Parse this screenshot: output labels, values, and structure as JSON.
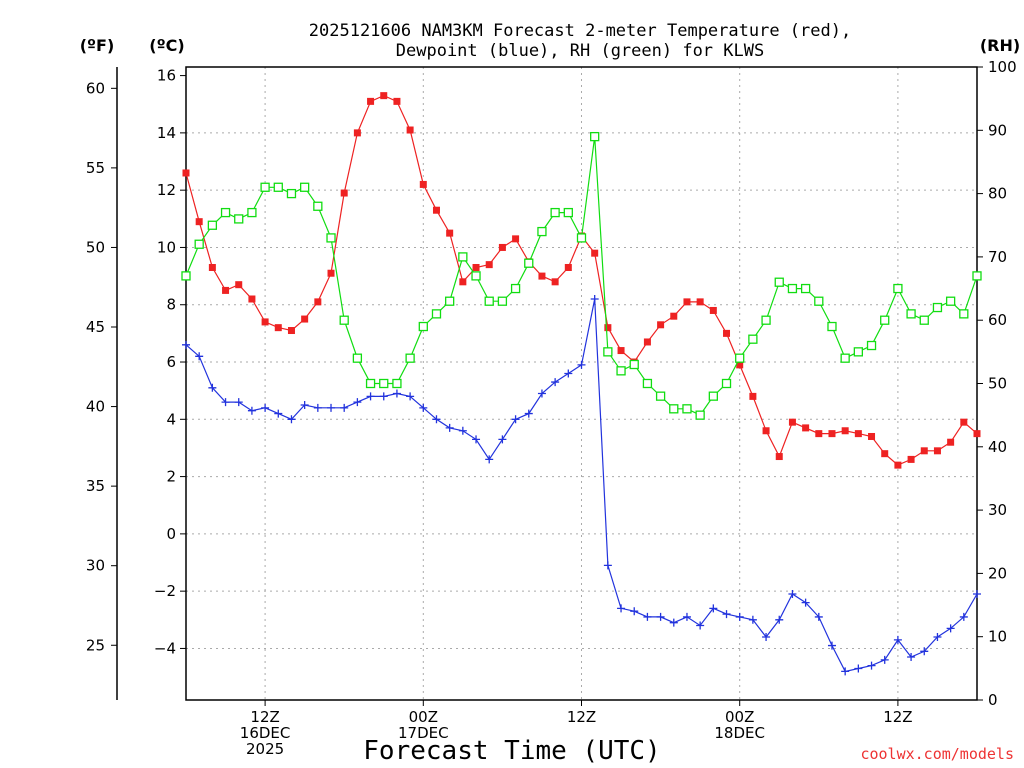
{
  "chart_data": {
    "type": "line",
    "title_line1": "2025121606 NAM3KM Forecast 2-meter Temperature (red),",
    "title_line2": "Dewpoint (blue), RH (green) for KLWS",
    "xlabel": "Forecast Time (UTC)",
    "credit": "coolwx.com/models",
    "units": {
      "left_f": "(ºF)",
      "left_c": "(ºC)",
      "right_rh": "(RH)"
    },
    "x_hours": [
      0,
      1,
      2,
      3,
      4,
      5,
      6,
      7,
      8,
      9,
      10,
      11,
      12,
      13,
      14,
      15,
      16,
      17,
      18,
      19,
      20,
      21,
      22,
      23,
      24,
      25,
      26,
      27,
      28,
      29,
      30,
      31,
      32,
      33,
      34,
      35,
      36,
      37,
      38,
      39,
      40,
      41,
      42,
      43,
      44,
      45,
      46,
      47,
      48,
      49,
      50,
      51,
      52,
      53,
      54,
      55,
      56,
      57,
      58,
      59,
      60
    ],
    "xlim": [
      0,
      60
    ],
    "x_ticks": [
      {
        "hour": 6,
        "lines": [
          "12Z",
          "16DEC",
          "2025"
        ]
      },
      {
        "hour": 18,
        "lines": [
          "00Z",
          "17DEC"
        ]
      },
      {
        "hour": 30,
        "lines": [
          "12Z"
        ]
      },
      {
        "hour": 42,
        "lines": [
          "00Z",
          "18DEC"
        ]
      },
      {
        "hour": 54,
        "lines": [
          "12Z"
        ]
      }
    ],
    "celsius_axis": {
      "ylim": [
        -5.8,
        16.3
      ],
      "ticks": [
        16,
        14,
        12,
        10,
        8,
        6,
        4,
        2,
        0,
        -2,
        -4
      ],
      "tick_labels": [
        "16",
        "14",
        "12",
        "10",
        "8",
        "6",
        "4",
        "2",
        "0",
        "−2",
        "−4"
      ]
    },
    "fahrenheit_axis": {
      "ticks": [
        60,
        55,
        50,
        45,
        40,
        35,
        30,
        25
      ],
      "tick_labels": [
        "60",
        "55",
        "50",
        "45",
        "40",
        "35",
        "30",
        "25"
      ]
    },
    "rh_axis": {
      "ylim": [
        0,
        100
      ],
      "ticks": [
        100,
        90,
        80,
        70,
        60,
        50,
        40,
        30,
        20,
        10,
        0
      ],
      "tick_labels": [
        "100",
        "90",
        "80",
        "70",
        "60",
        "50",
        "40",
        "30",
        "20",
        "10",
        "0"
      ]
    },
    "series": [
      {
        "name": "Temperature",
        "units": "C",
        "color": "#ee2222",
        "marker": "filled-square",
        "values": [
          12.6,
          10.9,
          9.3,
          8.5,
          8.7,
          8.2,
          7.4,
          7.2,
          7.1,
          7.5,
          8.1,
          9.1,
          11.9,
          14.0,
          15.1,
          15.3,
          15.1,
          14.1,
          12.2,
          11.3,
          10.5,
          8.8,
          9.3,
          9.4,
          10.0,
          10.3,
          9.5,
          9.0,
          8.8,
          9.3,
          10.4,
          9.8,
          7.2,
          6.4,
          6.0,
          6.7,
          7.3,
          7.6,
          8.1,
          8.1,
          7.8,
          7.0,
          5.9,
          4.8,
          3.6,
          2.7,
          3.9,
          3.7,
          3.5,
          3.5,
          3.6,
          3.5,
          3.4,
          2.8,
          2.4,
          2.6,
          2.9,
          2.9,
          3.2,
          3.9,
          3.5
        ]
      },
      {
        "name": "Dewpoint",
        "units": "C",
        "color": "#2233dd",
        "marker": "plus",
        "values": [
          6.6,
          6.2,
          5.1,
          4.6,
          4.6,
          4.3,
          4.4,
          4.2,
          4.0,
          4.5,
          4.4,
          4.4,
          4.4,
          4.6,
          4.8,
          4.8,
          4.9,
          4.8,
          4.4,
          4.0,
          3.7,
          3.6,
          3.3,
          2.6,
          3.3,
          4.0,
          4.2,
          4.9,
          5.3,
          5.6,
          5.9,
          8.2,
          -1.1,
          -2.6,
          -2.7,
          -2.9,
          -2.9,
          -3.1,
          -2.9,
          -3.2,
          -2.6,
          -2.8,
          -2.9,
          -3.0,
          -3.6,
          -3.0,
          -2.1,
          -2.4,
          -2.9,
          -3.9,
          -4.8,
          -4.7,
          -4.6,
          -4.4,
          -3.7,
          -4.3,
          -4.1,
          -3.6,
          -3.3,
          -2.9,
          -2.1
        ]
      },
      {
        "name": "RH",
        "units": "%",
        "color": "#11dd11",
        "marker": "open-square",
        "values": [
          67,
          72,
          75,
          77,
          76,
          77,
          81,
          81,
          80,
          81,
          78,
          73,
          60,
          54,
          50,
          50,
          50,
          54,
          59,
          61,
          63,
          70,
          67,
          63,
          63,
          65,
          69,
          74,
          77,
          77,
          73,
          89,
          55,
          52,
          53,
          50,
          48,
          46,
          46,
          45,
          48,
          50,
          54,
          57,
          60,
          66,
          65,
          65,
          63,
          59,
          54,
          55,
          56,
          60,
          65,
          61,
          60,
          62,
          63,
          61,
          67
        ]
      }
    ]
  }
}
